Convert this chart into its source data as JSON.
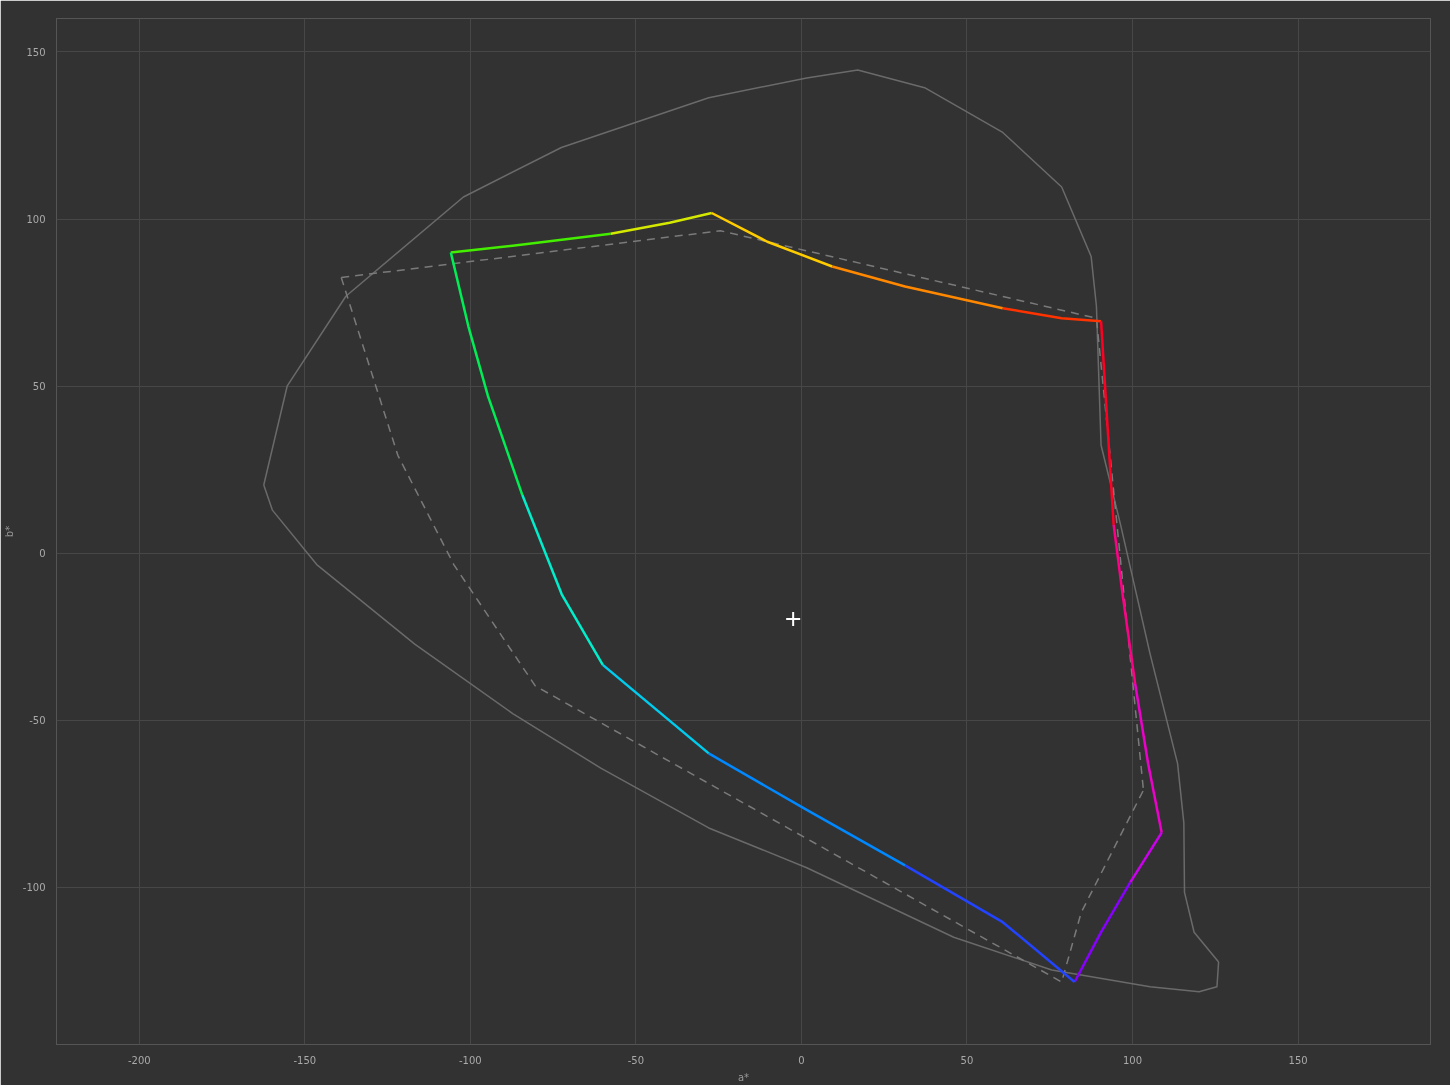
{
  "chart_data": {
    "type": "line",
    "xlabel": "a*",
    "ylabel": "b*",
    "xlim": [
      -225,
      190
    ],
    "ylim": [
      -147,
      160
    ],
    "xticks": [
      -200,
      -150,
      -100,
      -50,
      0,
      50,
      100,
      150
    ],
    "yticks": [
      -100,
      -50,
      0,
      50,
      100,
      150
    ],
    "grid": true,
    "series": [
      {
        "color": "#6a6a6a",
        "x": [
          -162.4,
          -155.3,
          -137.6,
          -102.1,
          -72.5,
          -28.0,
          1.6,
          17.0,
          37.2,
          60.8,
          78.6,
          87.5,
          89.1,
          90.5,
          96.4,
          105.3,
          113.6,
          115.5,
          115.7,
          118.6,
          126.0
        ],
        "values": [
          20.4,
          50.1,
          76.9,
          106.6,
          121.4,
          136.3,
          142.2,
          144.6,
          139.3,
          125.9,
          109.6,
          88.8,
          73.9,
          32.3,
          8.5,
          -30.1,
          -62.9,
          -80.7,
          -101.5,
          -113.4,
          -122.3
        ]
      },
      {
        "color": "#6a6a6a",
        "x": [
          -162.4,
          -159.8,
          -146.4,
          -116.8,
          -87.2,
          -60.6,
          -28.0,
          1.6,
          46.0,
          75.6,
          105.3,
          120.1,
          125.5,
          126.0
        ],
        "values": [
          20.4,
          12.9,
          -3.4,
          -27.2,
          -48.0,
          -64.3,
          -82.2,
          -94.1,
          -114.9,
          -124.7,
          -129.7,
          -131.2,
          -129.7,
          -122.3
        ]
      },
      {
        "color": "#7a7a7a",
        "line_style": "dashed",
        "x": [
          -139.0,
          -24.5,
          89.1,
          103.3
        ],
        "values": [
          82.5,
          96.5,
          70.3,
          -70.9
        ]
      },
      {
        "color": "#7a7a7a",
        "line_style": "dashed",
        "x": [
          -139.0,
          -121.9,
          -105.0,
          -80.4,
          78.6,
          84.5,
          103.3
        ],
        "values": [
          82.5,
          29.3,
          -3.4,
          -39.7,
          -128.3,
          -107.5,
          -70.9
        ]
      },
      {
        "color": "#44ee00",
        "x": [
          -105.9,
          -87.2,
          -57.6
        ],
        "values": [
          90.0,
          92.0,
          95.6
        ]
      },
      {
        "color": "#d4e800",
        "x": [
          -57.6,
          -39.8,
          -27.1
        ],
        "values": [
          95.6,
          98.9,
          101.8
        ]
      },
      {
        "color": "#ffcc00",
        "x": [
          -27.1,
          -10.3,
          9.3
        ],
        "values": [
          101.8,
          93.2,
          85.8
        ]
      },
      {
        "color": "#ff8800",
        "x": [
          9.3,
          31.3,
          60.8
        ],
        "values": [
          85.8,
          79.8,
          73.3
        ]
      },
      {
        "color": "#ff3300",
        "x": [
          60.8,
          78.6,
          90.5
        ],
        "values": [
          73.3,
          70.3,
          69.4
        ]
      },
      {
        "color": "#ff0022",
        "x": [
          90.5,
          92.8,
          94.3
        ],
        "values": [
          69.4,
          32.3,
          8.5
        ]
      },
      {
        "color": "#ff0088",
        "x": [
          94.3,
          97.0,
          100.8
        ],
        "values": [
          8.5,
          -12.3,
          -39.1
        ]
      },
      {
        "color": "#ee00cc",
        "x": [
          100.8,
          104.7,
          108.8
        ],
        "values": [
          -39.1,
          -62.9,
          -83.6
        ]
      },
      {
        "color": "#cc00ee",
        "x": [
          108.8,
          99.3
        ],
        "values": [
          -83.6,
          -98.5
        ]
      },
      {
        "color": "#8800ff",
        "x": [
          99.3,
          90.5,
          82.5
        ],
        "values": [
          -98.5,
          -113.4,
          -128.3
        ]
      },
      {
        "color": "#2244ff",
        "x": [
          82.5,
          60.8,
          31.3
        ],
        "values": [
          -128.3,
          -110.4,
          -93.4
        ]
      },
      {
        "color": "#0088ff",
        "x": [
          31.3,
          1.6,
          -28.0
        ],
        "values": [
          -93.4,
          -76.8,
          -59.9
        ]
      },
      {
        "color": "#00ccee",
        "x": [
          -28.0,
          -60.0
        ],
        "values": [
          -59.9,
          -33.4
        ]
      },
      {
        "color": "#00eecc",
        "x": [
          -60.0,
          -72.4,
          -84.3
        ],
        "values": [
          -33.4,
          -12.3,
          17.4
        ]
      },
      {
        "color": "#00ee55",
        "x": [
          -84.3,
          -94.7,
          -100.6,
          -105.9
        ],
        "values": [
          17.4,
          47.1,
          67.9,
          90.0
        ]
      },
      {
        "type": "scatter",
        "marker": "cross",
        "color": "#ffffff",
        "x": [
          -2.5
        ],
        "values": [
          -19.7
        ]
      }
    ]
  }
}
